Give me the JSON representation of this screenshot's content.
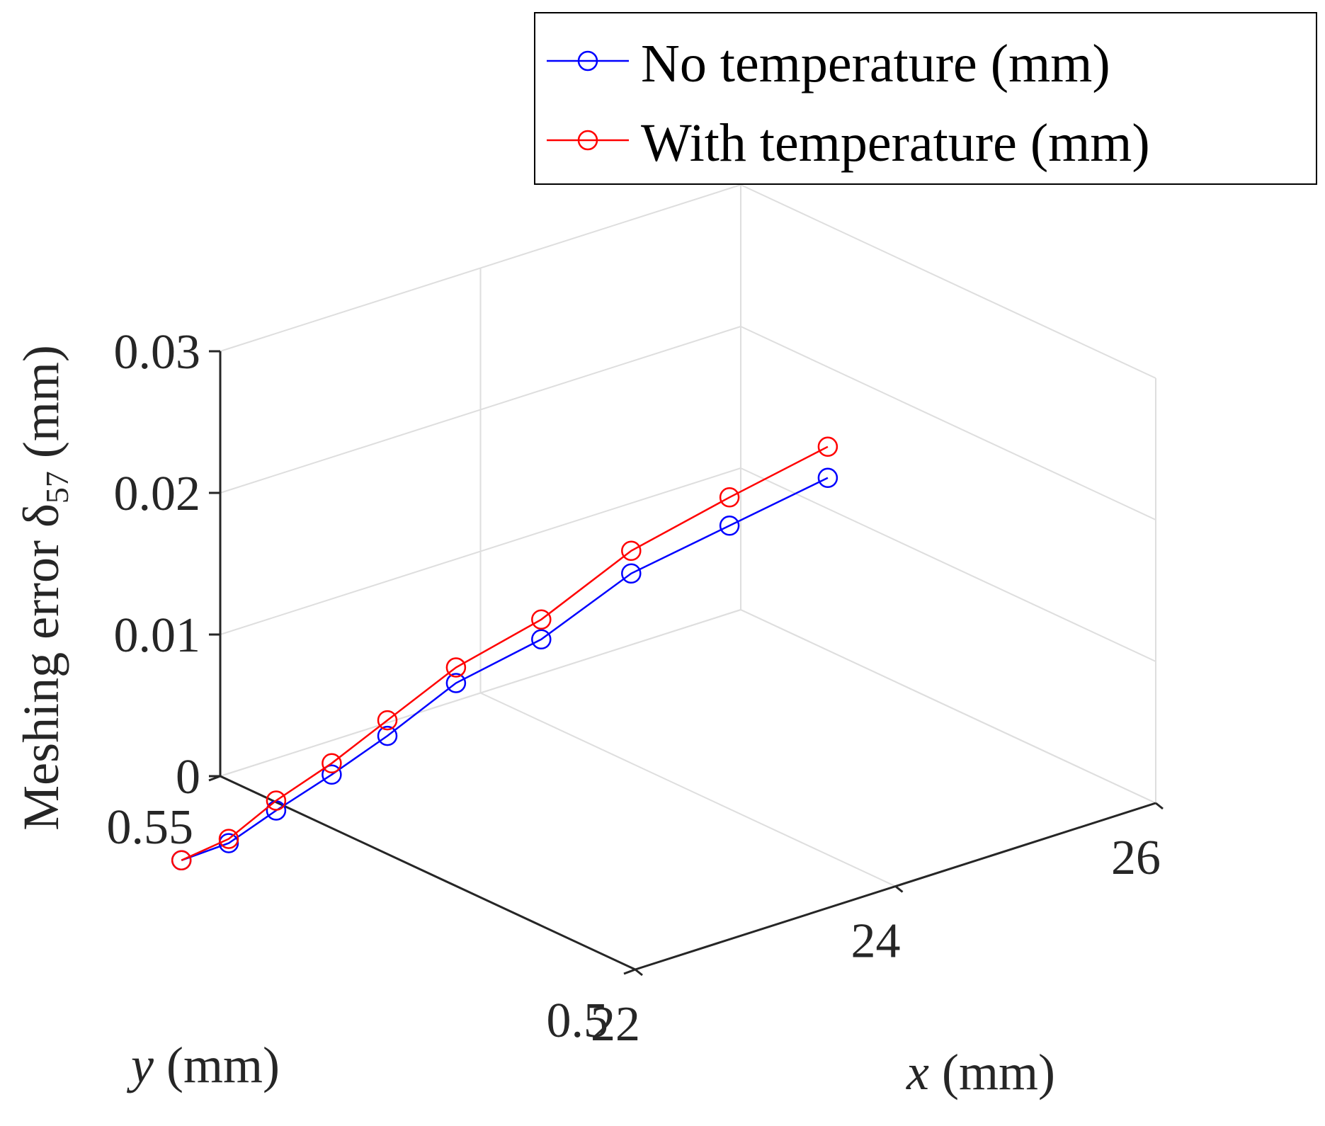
{
  "chart_data": {
    "type": "line3d",
    "title": "",
    "xlabel": {
      "var": "x",
      "unit": " (mm)"
    },
    "ylabel": {
      "var": "y",
      "unit": " (mm)"
    },
    "zlabel": {
      "prefix": "Meshing error ",
      "symbol": "δ",
      "subscript": "57",
      "unit": " (mm)"
    },
    "xlim": [
      22,
      26
    ],
    "ylim": [
      0.5,
      0.55
    ],
    "zlim": [
      0,
      0.03
    ],
    "xticks": [
      22,
      24,
      26
    ],
    "yticks": [
      0.5,
      0.55
    ],
    "zticks": [
      0,
      0.01,
      0.02,
      0.03
    ],
    "xtick_labels": [
      "22",
      "24",
      "26"
    ],
    "ytick_labels": [
      "0.5",
      "0.55"
    ],
    "ztick_labels": [
      "0",
      "0.01",
      "0.02",
      "0.03"
    ],
    "grid": true,
    "legend_position": "top-right",
    "x": [
      21.0,
      21.3,
      21.6,
      21.9,
      22.2,
      22.6,
      23.0,
      23.5,
      24.0,
      24.5
    ],
    "y": [
      0.539,
      0.538,
      0.537,
      0.535,
      0.533,
      0.531,
      0.527,
      0.524,
      0.52,
      0.516
    ],
    "series": [
      {
        "name": "No temperature (mm)",
        "color": "#0000ff",
        "marker": "circle",
        "values": [
          0.0,
          0.0006,
          0.0023,
          0.0045,
          0.0069,
          0.01,
          0.013,
          0.017,
          0.02,
          0.023
        ]
      },
      {
        "name": "With temperature (mm)",
        "color": "#ff0000",
        "marker": "circle",
        "values": [
          0.0,
          0.0009,
          0.003,
          0.0053,
          0.008,
          0.0111,
          0.0144,
          0.0186,
          0.022,
          0.0252
        ]
      }
    ]
  }
}
